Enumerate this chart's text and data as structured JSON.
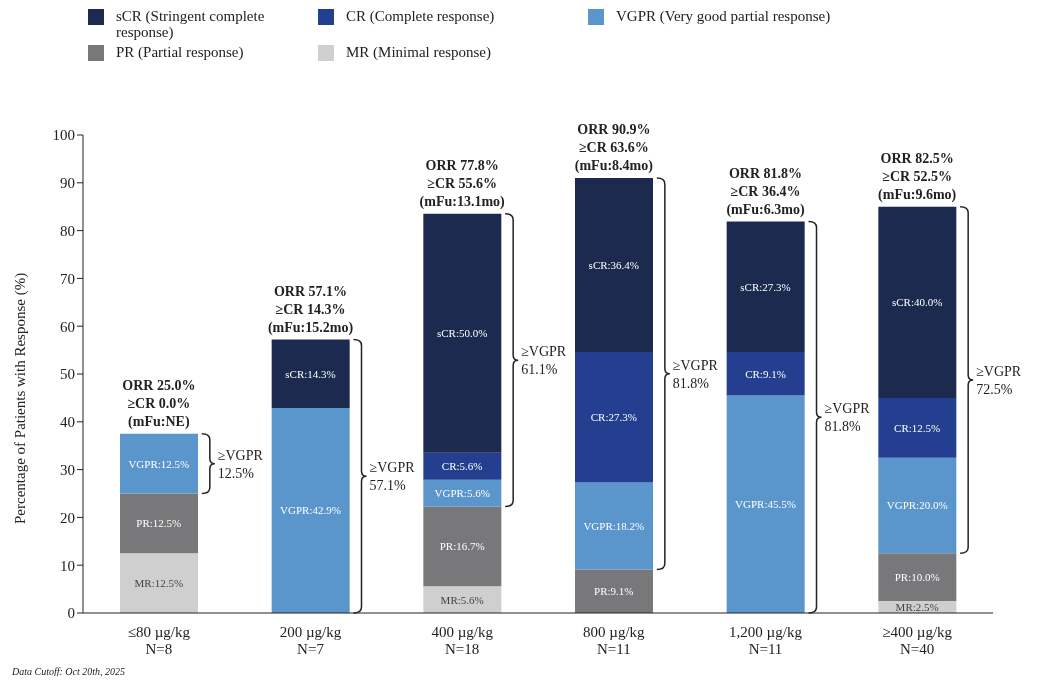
{
  "chart_data": {
    "type": "bar",
    "stacked": true,
    "legend": "top left",
    "ylabel": "Percentage of Patients with Response (%)",
    "categories": [
      "≤80 µg/kg\nN=8",
      "200 µg/kg\nN=7",
      "400 µg/kg\nN=18",
      "800 µg/kg\nN=11",
      "1,200 µg/kg\nN=11",
      "≥400 µg/kg\nN=40"
    ],
    "ylim": [
      0,
      100
    ],
    "yticks": [
      0,
      10,
      20,
      30,
      40,
      50,
      60,
      70,
      80,
      90,
      100
    ],
    "grid": false,
    "series": [
      {
        "name": "MR (Minimal response)",
        "color": "#cfcfcf",
        "values": [
          12.5,
          0,
          5.6,
          0,
          0,
          2.5
        ],
        "value_labels": [
          "MR:12.5%",
          null,
          "MR:5.6%",
          null,
          null,
          "MR:2.5%"
        ]
      },
      {
        "name": "PR (Partial response)",
        "color": "#78787a",
        "values": [
          12.5,
          0,
          16.7,
          9.1,
          0,
          10.0
        ],
        "value_labels": [
          "PR:12.5%",
          null,
          "PR:16.7%",
          "PR:9.1%",
          null,
          "PR:10.0%"
        ]
      },
      {
        "name": "VGPR (Very good partial response)",
        "color": "#5a95cb",
        "values": [
          12.5,
          42.9,
          5.6,
          18.2,
          45.5,
          20.0
        ],
        "value_labels": [
          "VGPR:12.5%",
          "VGPR:42.9%",
          "VGPR:5.6%",
          "VGPR:18.2%",
          "VGPR:45.5%",
          "VGPR:20.0%"
        ]
      },
      {
        "name": "CR (Complete response)",
        "color": "#243f8f",
        "values": [
          0,
          0,
          5.6,
          27.3,
          9.1,
          12.5
        ],
        "value_labels": [
          null,
          null,
          "CR:5.6%",
          "CR:27.3%",
          "CR:9.1%",
          "CR:12.5%"
        ]
      },
      {
        "name": "sCR (Stringent complete response)",
        "color": "#1b2a4e",
        "values": [
          0,
          14.3,
          50.0,
          36.4,
          27.3,
          40.0
        ],
        "value_labels": [
          null,
          "sCR:14.3%",
          "sCR:50.0%",
          "sCR:36.4%",
          "sCR:27.3%",
          "sCR:40.0%"
        ]
      }
    ],
    "annotations": [
      {
        "text": "ORR 25.0%\n≥CR 0.0%\n(mFu:NE)",
        "x": "≤80 µg/kg\nN=8",
        "y": 37.5
      },
      {
        "text": "ORR 57.1%\n≥CR 14.3%\n(mFu:15.2mo)",
        "x": "200 µg/kg\nN=7",
        "y": 57.2
      },
      {
        "text": "ORR 77.8%\n≥CR 55.6%\n(mFu:13.1mo)",
        "x": "400 µg/kg\nN=18",
        "y": 83.5
      },
      {
        "text": "ORR 90.9%\n≥CR 63.6%\n(mFu:8.4mo)",
        "x": "800 µg/kg\nN=11",
        "y": 91.0
      },
      {
        "text": "ORR 81.8%\n≥CR 36.4%\n(mFu:6.3mo)",
        "x": "1,200 µg/kg\nN=11",
        "y": 81.9
      },
      {
        "text": "ORR 82.5%\n≥CR 52.5%\n(mFu:9.6mo)",
        "x": "≥400 µg/kg\nN=40",
        "y": 85.0
      },
      "≥VGPR\n12.5%",
      "≥VGPR\n57.1%",
      "≥VGPR\n61.1%",
      "≥VGPR\n81.8%",
      "≥VGPR\n81.8%",
      "≥VGPR\n72.5%",
      "Data Cutoff: Oct 20th, 2025"
    ]
  }
}
